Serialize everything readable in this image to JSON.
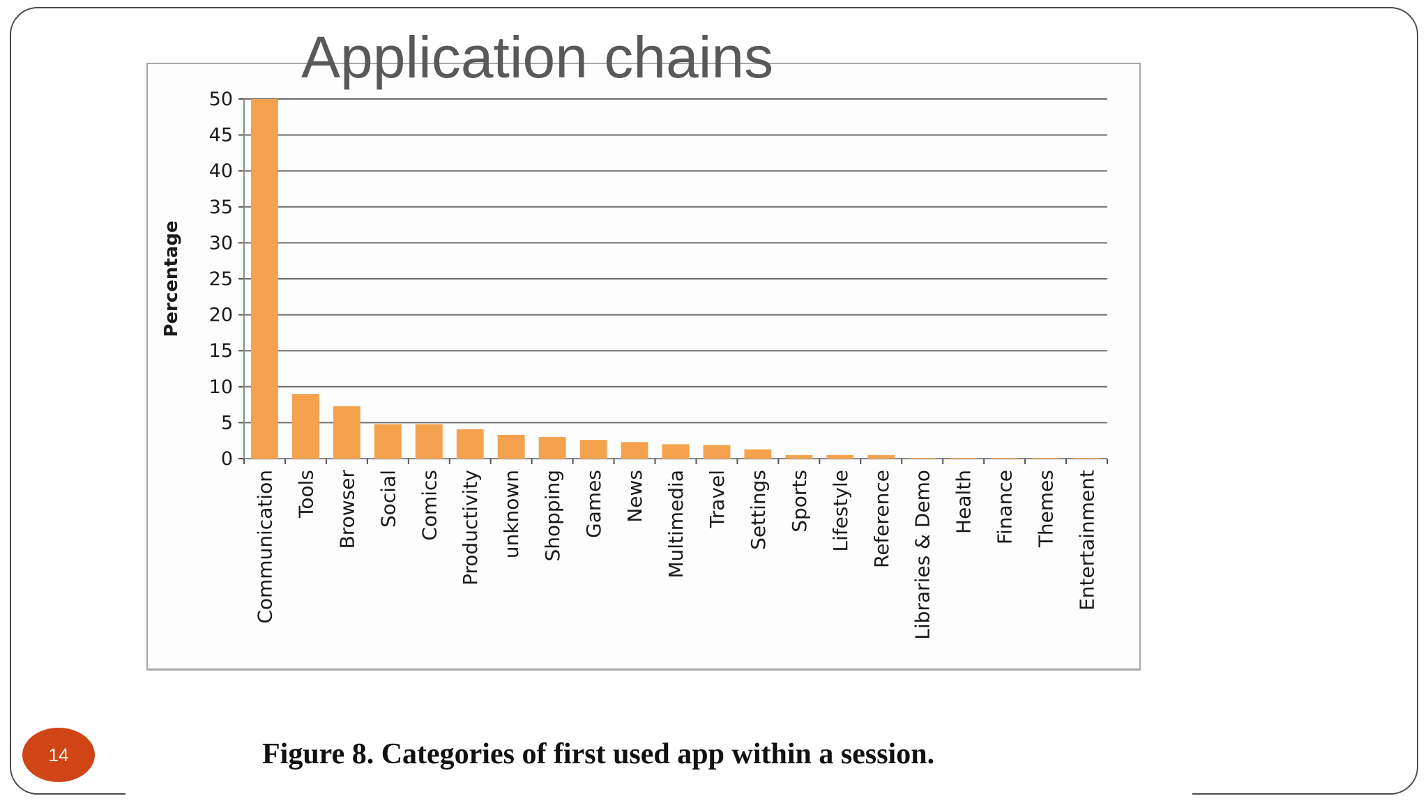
{
  "slide": {
    "title": "Application chains",
    "caption": "Figure 8. Categories of first used app within a session.",
    "page_number": "14"
  },
  "colors": {
    "bar": "#f5a24f",
    "gridline": "#6e6e6e",
    "badge": "#cf4516",
    "title": "#595959"
  },
  "chart_data": {
    "type": "bar",
    "title": "",
    "xlabel": "",
    "ylabel": "Percentage",
    "ylim": [
      0,
      50
    ],
    "yticks": [
      0,
      5,
      10,
      15,
      20,
      25,
      30,
      35,
      40,
      45,
      50
    ],
    "grid": true,
    "legend": "none",
    "categories": [
      "Communication",
      "Tools",
      "Browser",
      "Social",
      "Comics",
      "Productivity",
      "unknown",
      "Shopping",
      "Games",
      "News",
      "Multimedia",
      "Travel",
      "Settings",
      "Sports",
      "Lifestyle",
      "Reference",
      "Libraries & Demo",
      "Health",
      "Finance",
      "Themes",
      "Entertainment"
    ],
    "values": [
      50,
      9,
      7.3,
      4.8,
      4.8,
      4.1,
      3.3,
      3,
      2.6,
      2.3,
      2,
      1.9,
      1.3,
      0.5,
      0.5,
      0.5,
      0.1,
      0.1,
      0.1,
      0.1,
      0.1
    ]
  }
}
